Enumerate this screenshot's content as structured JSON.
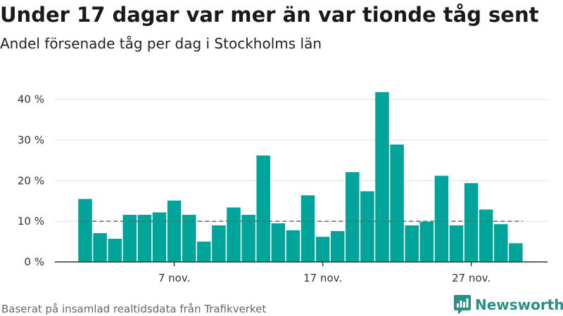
{
  "title": "Under 17 dagar var mer än var tionde tåg sent",
  "subtitle": "Andel försenade tåg per dag i Stockholms län",
  "source": "Baserat på insamlad realtidsdata från Trafikverket",
  "brand": {
    "name": "Newsworthy",
    "icon": "newsworthy-logo-icon",
    "color": "#2a8f86"
  },
  "colors": {
    "bar": "#00a49a",
    "reference_line": "#666666",
    "grid": "#dddddd",
    "axis": "#333333"
  },
  "chart_data": {
    "type": "bar",
    "x": [
      "1 nov.",
      "2 nov.",
      "3 nov.",
      "4 nov.",
      "5 nov.",
      "6 nov.",
      "7 nov.",
      "8 nov.",
      "9 nov.",
      "10 nov.",
      "11 nov.",
      "12 nov.",
      "13 nov.",
      "14 nov.",
      "15 nov.",
      "16 nov.",
      "17 nov.",
      "18 nov.",
      "19 nov.",
      "20 nov.",
      "21 nov.",
      "22 nov.",
      "23 nov.",
      "24 nov.",
      "25 nov.",
      "26 nov.",
      "27 nov.",
      "28 nov.",
      "29 nov.",
      "30 nov."
    ],
    "values": [
      15.5,
      7.1,
      5.7,
      11.6,
      11.6,
      12.2,
      15.1,
      11.6,
      5.0,
      9.0,
      13.4,
      11.6,
      26.2,
      9.5,
      7.8,
      16.4,
      6.2,
      7.6,
      22.1,
      17.4,
      41.8,
      28.9,
      9.0,
      9.9,
      21.2,
      9.0,
      19.4,
      12.9,
      9.3,
      4.6
    ],
    "x_ticks": [
      "7 nov.",
      "17 nov.",
      "27 nov."
    ],
    "y_ticks": [
      "0 %",
      "10 %",
      "20 %",
      "30 %",
      "40 %"
    ],
    "y_tick_values": [
      0,
      10,
      20,
      30,
      40
    ],
    "ylim": [
      0,
      42
    ],
    "reference_line": 10,
    "grid": true,
    "xlabel": "",
    "ylabel": ""
  }
}
